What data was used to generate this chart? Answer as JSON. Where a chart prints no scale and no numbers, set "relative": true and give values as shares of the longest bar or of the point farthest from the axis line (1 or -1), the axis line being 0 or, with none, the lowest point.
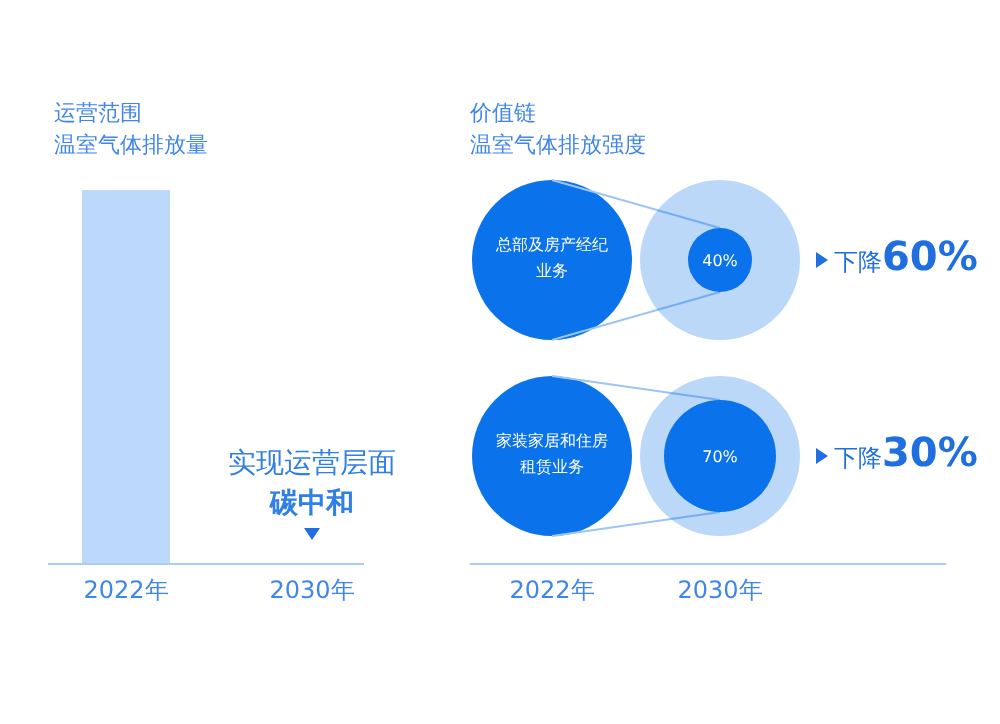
{
  "chart_data": [
    {
      "type": "bar",
      "title": "运营范围",
      "subtitle": "温室气体排放量",
      "categories": [
        "2022年",
        "2030年"
      ],
      "values": [
        1,
        0
      ],
      "relative": true,
      "color": "#bcd8fb",
      "annotations": [
        {
          "text": "实现运营层面碳中和",
          "x": "2030年",
          "y": 0
        }
      ]
    },
    {
      "type": "other",
      "title": "价值链",
      "subtitle": "温室气体排放强度",
      "categories": [
        "2022年",
        "2030年"
      ],
      "series": [
        {
          "color": "#0a72ea",
          "values": [
            null,
            40
          ],
          "value_labels": [
            null,
            "40%"
          ]
        },
        {
          "color": "#0a72ea",
          "values": [
            null,
            70
          ],
          "value_labels": [
            null,
            "70%"
          ]
        }
      ],
      "annotations": [
        "总部及房产经纪业务",
        "下降**60%**",
        "家装家居和住房租赁业务",
        "下降**30%**"
      ]
    }
  ]
}
